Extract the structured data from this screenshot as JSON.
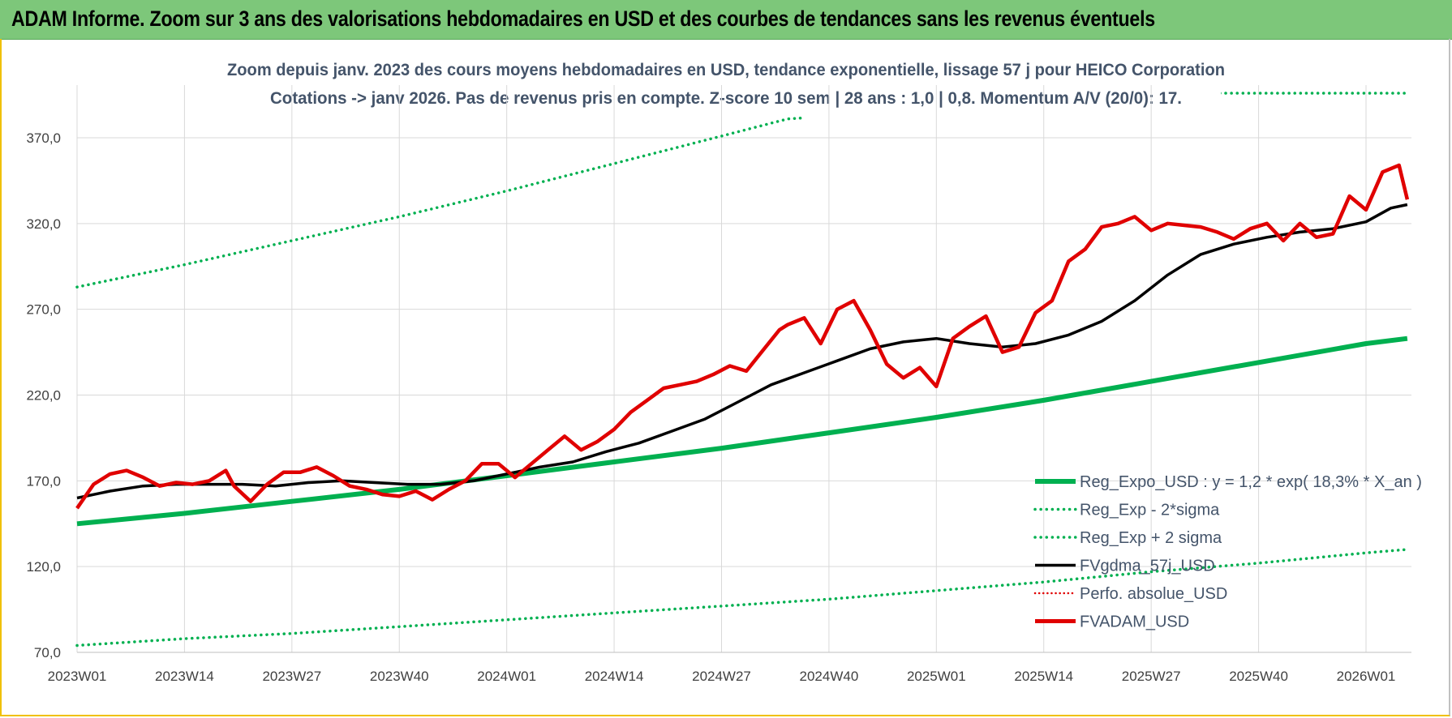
{
  "header": {
    "title": "ADAM Informe. Zoom sur 3 ans des valorisations hebdomadaires en USD et des courbes de tendances sans les revenus éventuels"
  },
  "chart_data": {
    "type": "line",
    "title_line1": "Zoom depuis janv. 2023 des cours moyens hebdomadaires en USD, tendance exponentielle, lissage 57 j pour HEICO Corporation",
    "title_line2": "Cotations -> janv 2026. Pas de revenus pris en compte. Z-score 10 sem | 28 ans : 1,0 | 0,8. Momentum A/V (20/0): 17.",
    "ylim": [
      70,
      395
    ],
    "y_ticks": [
      "70,0",
      "120,0",
      "170,0",
      "220,0",
      "270,0",
      "320,0",
      "370,0"
    ],
    "y_tick_values": [
      70,
      120,
      170,
      220,
      270,
      320,
      370
    ],
    "x_ticks": [
      "2023W01",
      "2023W14",
      "2023W27",
      "2023W40",
      "2024W01",
      "2024W14",
      "2024W27",
      "2024W40",
      "2025W01",
      "2025W14",
      "2025W27",
      "2025W40",
      "2026W01"
    ],
    "grid": true,
    "legend_position": "bottom-right",
    "colors": {
      "reg_expo": "#00b050",
      "sigma": "#00b050",
      "fvgdma": "#000000",
      "perfo": "#e00000",
      "fvadam": "#e00000",
      "grid": "#d9d9d9",
      "axis_text": "#404040",
      "title_text": "#44546a"
    },
    "legend": [
      {
        "key": "reg_expo",
        "label": "Reg_Expo_USD : y = 1,2 * exp( 18,3% *  X_an )",
        "style": "thick"
      },
      {
        "key": "minus2",
        "label": "Reg_Exp - 2*sigma",
        "style": "dotted"
      },
      {
        "key": "plus2",
        "label": "Reg_Exp + 2 sigma",
        "style": "dotted"
      },
      {
        "key": "fvgdma",
        "label": "FVgdma_57j_USD",
        "style": "solid"
      },
      {
        "key": "perfo",
        "label": "Perfo. absolue_USD",
        "style": "dotted-red"
      },
      {
        "key": "fvadam",
        "label": "FVADAM_USD",
        "style": "thick-red"
      }
    ],
    "series": [
      {
        "name": "Reg_Expo_USD : y = 1,2 * exp( 18,3% *  X_an )",
        "x": [
          0,
          13,
          26,
          39,
          52,
          65,
          78,
          91,
          104,
          117,
          130,
          143,
          156,
          161
        ],
        "values": [
          145,
          151,
          158,
          165,
          173,
          181,
          189,
          198,
          207,
          217,
          228,
          239,
          250,
          253
        ]
      },
      {
        "name": "Reg_Exp - 2*sigma",
        "x": [
          0,
          13,
          26,
          39,
          52,
          65,
          78,
          91,
          104,
          117,
          130,
          143,
          156,
          161
        ],
        "values": [
          74,
          78,
          81,
          85,
          89,
          93,
          97,
          101,
          106,
          111,
          117,
          122,
          128,
          130
        ]
      },
      {
        "name": "Reg_Exp + 2 sigma",
        "x": [
          0,
          13,
          26,
          39,
          52,
          65,
          78,
          86,
          138,
          161
        ],
        "values": [
          283,
          296,
          310,
          324,
          339,
          355,
          371,
          381,
          396,
          396
        ]
      },
      {
        "name": "FVgdma_57j_USD",
        "x": [
          0,
          4,
          8,
          12,
          16,
          20,
          24,
          28,
          32,
          36,
          40,
          44,
          48,
          52,
          56,
          60,
          64,
          68,
          72,
          76,
          80,
          84,
          88,
          92,
          96,
          100,
          104,
          108,
          112,
          116,
          120,
          124,
          128,
          132,
          136,
          140,
          144,
          148,
          152,
          156,
          159,
          161
        ],
        "values": [
          160,
          164,
          167,
          168,
          168,
          168,
          167,
          169,
          170,
          169,
          168,
          168,
          170,
          174,
          178,
          181,
          187,
          192,
          199,
          206,
          216,
          226,
          233,
          240,
          247,
          251,
          253,
          250,
          248,
          250,
          255,
          263,
          275,
          290,
          302,
          308,
          312,
          315,
          317,
          321,
          329,
          331
        ]
      },
      {
        "name": "FVADAM_USD",
        "x": [
          0,
          2,
          4,
          6,
          8,
          10,
          12,
          14,
          16,
          18,
          19,
          21,
          23,
          25,
          27,
          29,
          31,
          33,
          35,
          37,
          39,
          41,
          43,
          45,
          47,
          49,
          51,
          53,
          55,
          57,
          59,
          61,
          63,
          65,
          67,
          69,
          71,
          73,
          75,
          77,
          79,
          81,
          83,
          85,
          86,
          88,
          90,
          92,
          94,
          96,
          98,
          100,
          102,
          104,
          106,
          108,
          110,
          112,
          114,
          116,
          118,
          120,
          122,
          124,
          126,
          128,
          130,
          132,
          134,
          136,
          138,
          140,
          142,
          144,
          146,
          148,
          150,
          152,
          154,
          156,
          158,
          160,
          161
        ],
        "values": [
          154,
          168,
          174,
          176,
          172,
          167,
          169,
          168,
          170,
          176,
          167,
          158,
          168,
          175,
          175,
          178,
          173,
          167,
          165,
          162,
          161,
          164,
          159,
          165,
          170,
          180,
          180,
          172,
          180,
          188,
          196,
          188,
          193,
          200,
          210,
          217,
          224,
          226,
          228,
          232,
          237,
          234,
          246,
          258,
          261,
          265,
          250,
          270,
          275,
          258,
          238,
          230,
          236,
          225,
          253,
          260,
          266,
          245,
          248,
          268,
          275,
          298,
          305,
          318,
          320,
          324,
          316,
          320,
          319,
          318,
          315,
          311,
          317,
          320,
          310,
          320,
          312,
          314,
          336,
          328,
          350,
          354,
          334
        ]
      }
    ]
  }
}
